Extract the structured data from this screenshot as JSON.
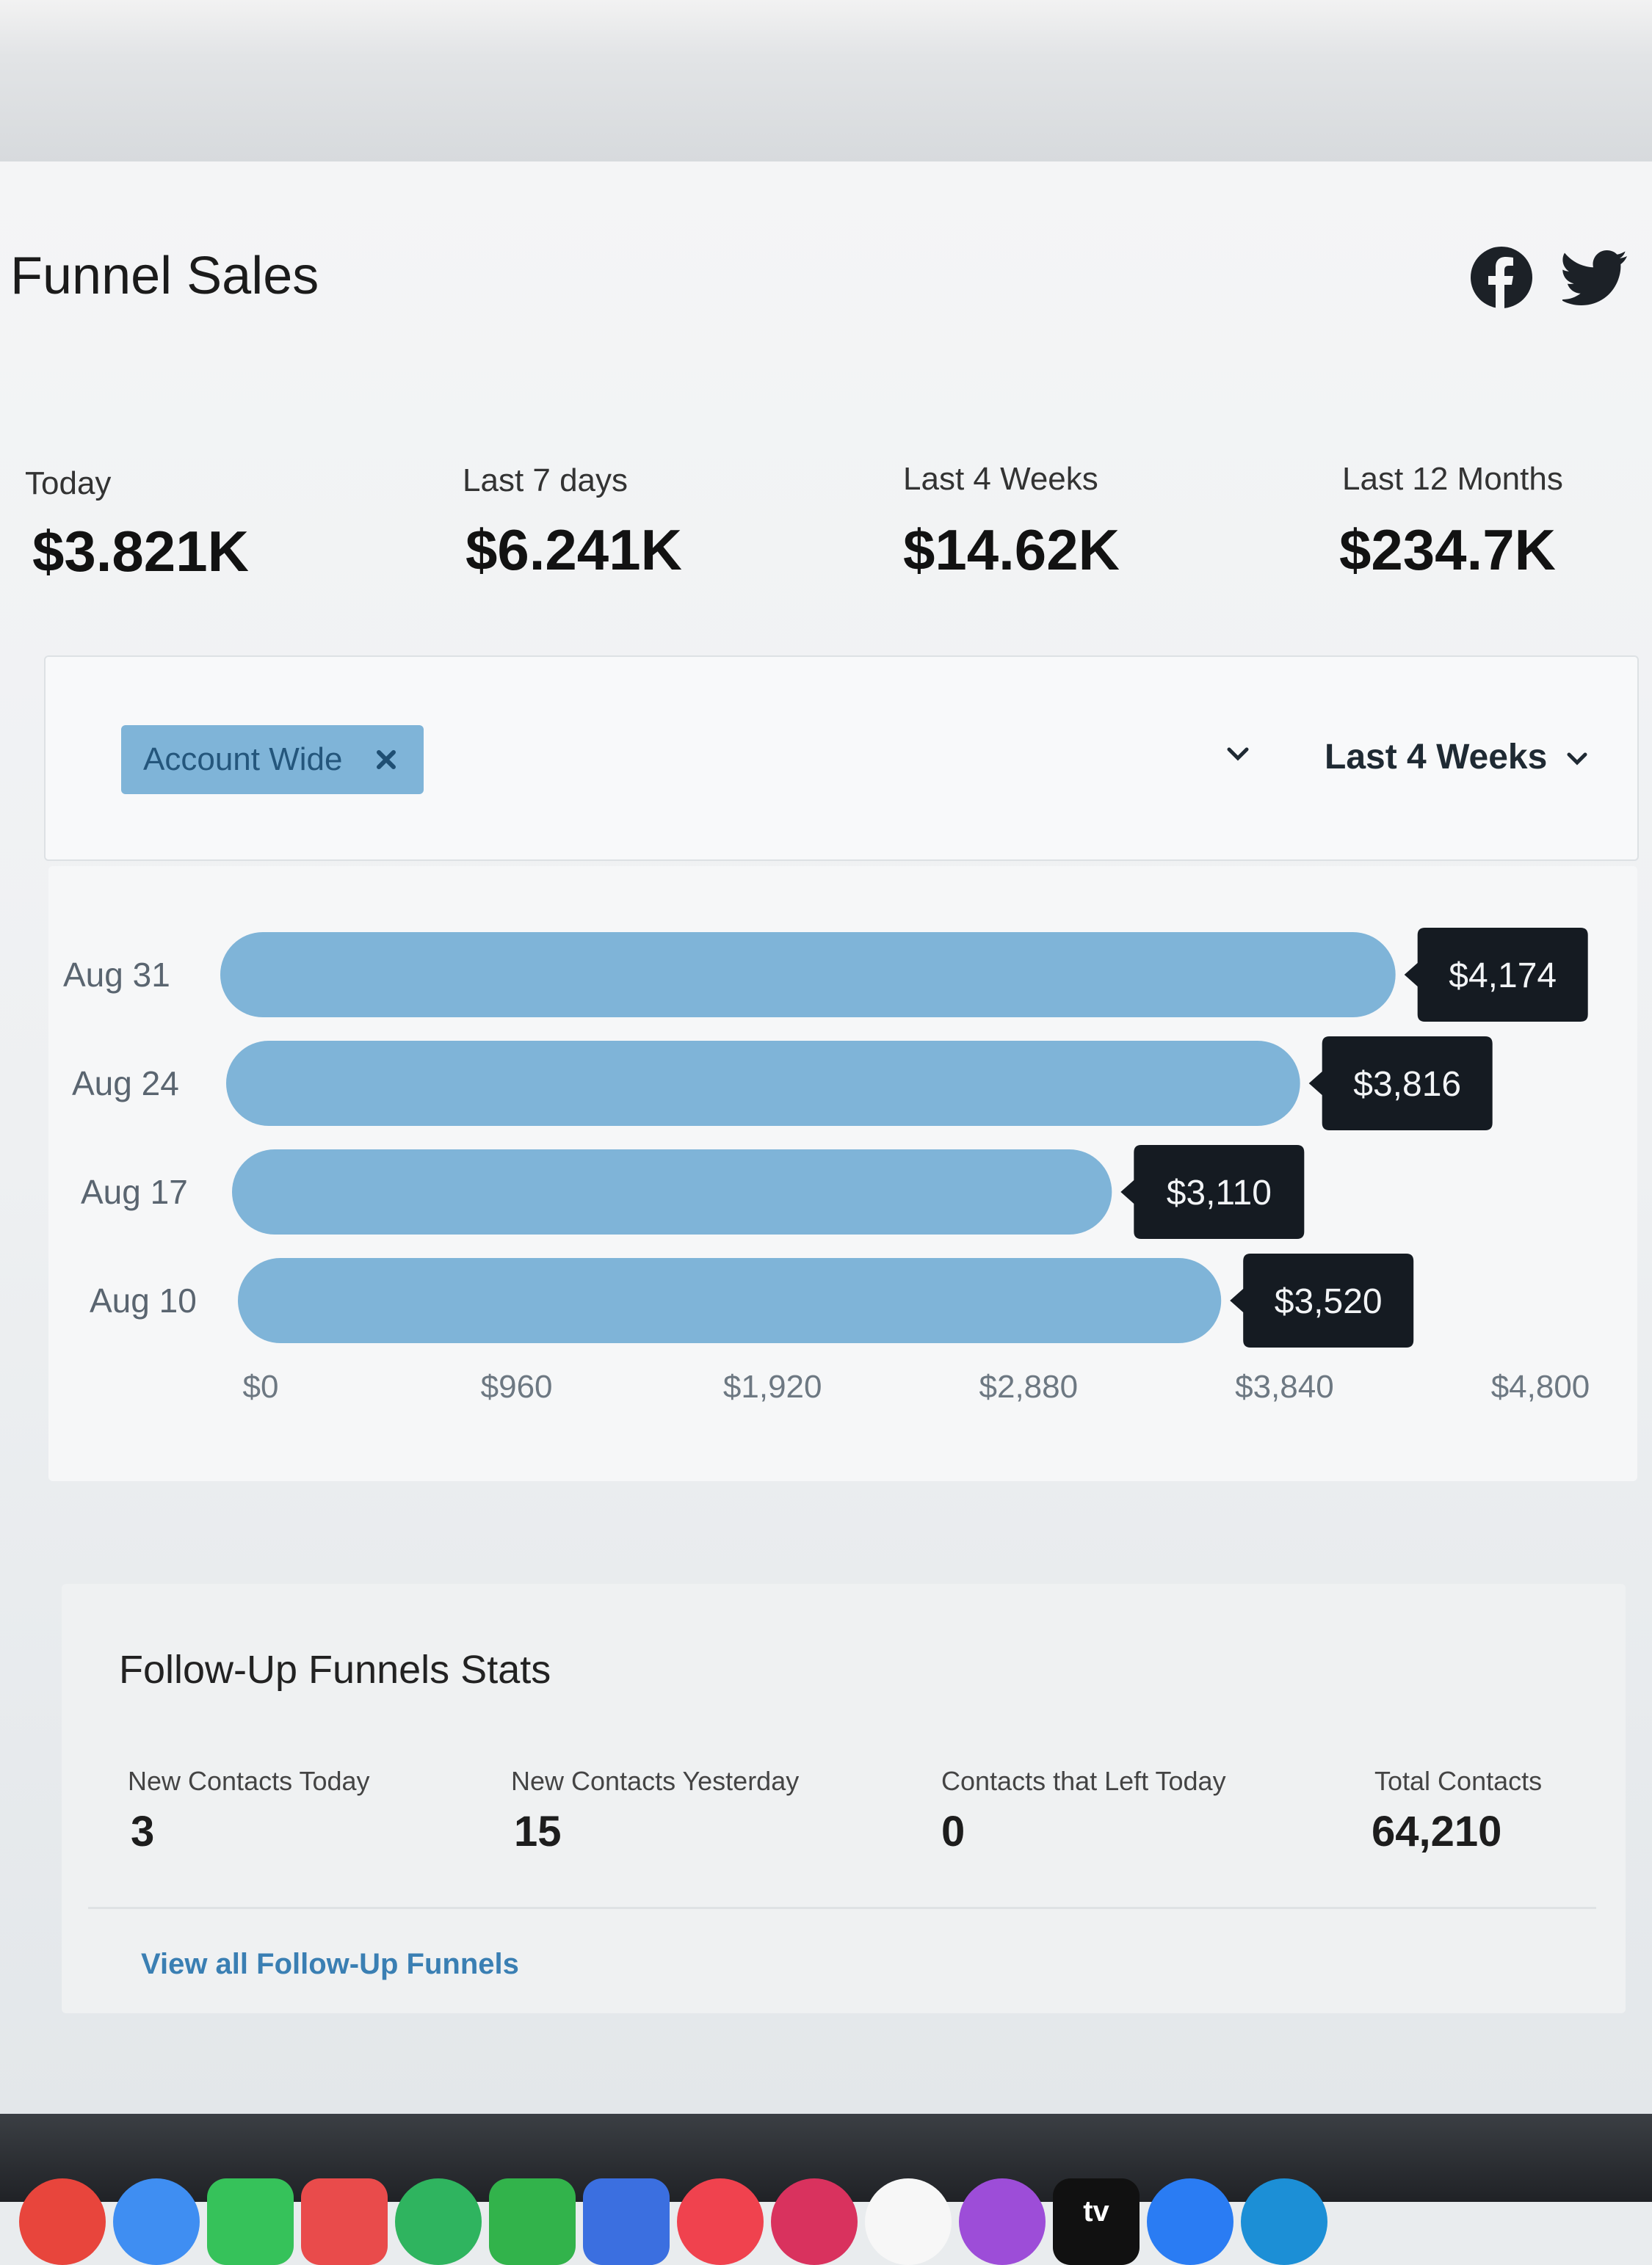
{
  "header": {
    "title": "Funnel Sales",
    "social": [
      "facebook-icon",
      "twitter-icon"
    ]
  },
  "stats": [
    {
      "label": "Today",
      "value": "$3.821K"
    },
    {
      "label": "Last 7 days",
      "value": "$6.241K"
    },
    {
      "label": "Last 4 Weeks",
      "value": "$14.62K"
    },
    {
      "label": "Last 12 Months",
      "value": "$234.7K"
    }
  ],
  "filter": {
    "chip_label": "Account Wide",
    "period_label": "Last 4 Weeks"
  },
  "chart_data": {
    "type": "bar",
    "orientation": "horizontal",
    "categories": [
      "Aug 31",
      "Aug 24",
      "Aug 17",
      "Aug 10"
    ],
    "values": [
      4174,
      3816,
      3110,
      3520
    ],
    "value_labels": [
      "$4,174",
      "$3,816",
      "$3,110",
      "$3,520"
    ],
    "x_ticks": [
      "$0",
      "$960",
      "$1,920",
      "$2,880",
      "$3,840",
      "$4,800"
    ],
    "xlim": [
      0,
      4800
    ],
    "bar_color": "#7fb4d8",
    "label_bg": "#151b22"
  },
  "followup": {
    "title": "Follow-Up Funnels Stats",
    "items": [
      {
        "label": "New Contacts Today",
        "value": "3"
      },
      {
        "label": "New Contacts Yesterday",
        "value": "15"
      },
      {
        "label": "Contacts that Left Today",
        "value": "0"
      },
      {
        "label": "Total Contacts",
        "value": "64,210"
      }
    ],
    "link": "View all Follow-Up Funnels"
  },
  "dock": {
    "icons": [
      "chrome-icon",
      "finder-icon",
      "facetime-icon",
      "calendar-icon",
      "evernote-icon",
      "numbers-icon",
      "keynote-icon",
      "news-icon",
      "cardhop-icon",
      "music-icon",
      "podcasts-icon",
      "appletv-icon",
      "appstore-icon",
      "skype-icon"
    ],
    "tv_label": "tv"
  }
}
